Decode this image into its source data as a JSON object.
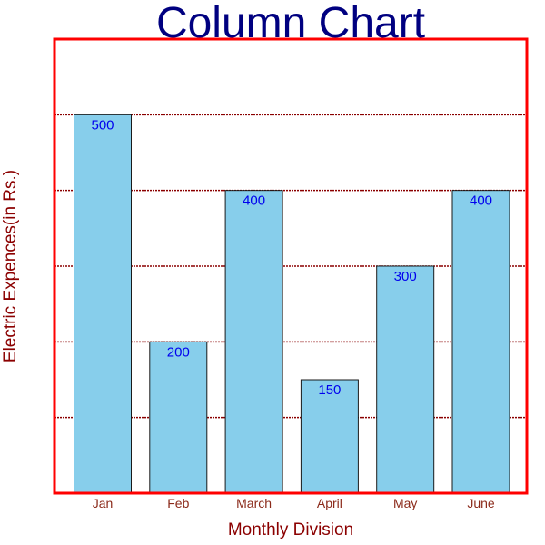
{
  "chart_data": {
    "type": "bar",
    "title": "Column Chart",
    "xlabel": "Monthly Division",
    "ylabel": "Electric Expences(in Rs.)",
    "categories": [
      "Jan",
      "Feb",
      "March",
      "April",
      "May",
      "June"
    ],
    "values": [
      500,
      200,
      400,
      150,
      300,
      400
    ],
    "data_labels": [
      "500",
      "200",
      "400",
      "150",
      "300",
      "400"
    ],
    "ylim": [
      0,
      600
    ],
    "grid": true,
    "legend": "none",
    "colors": {
      "bar_fill": "#87ceeb",
      "bar_stroke": "#1a1a1a",
      "plot_border": "#ff0000",
      "grid": "#8b0000",
      "title": "#000080",
      "axis_label": "#8b0000",
      "tick_label": "#8b2a1a",
      "data_label": "#0000ee"
    }
  }
}
